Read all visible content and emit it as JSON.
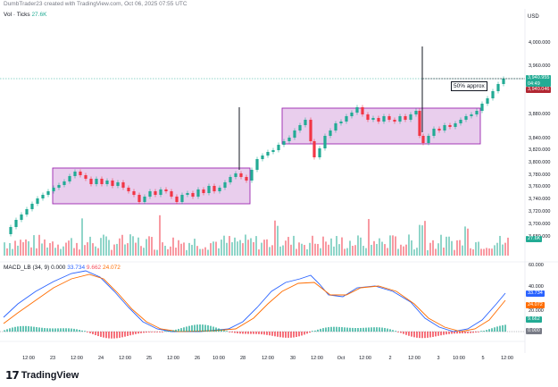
{
  "header": {
    "text": "DumbTrader23 created with TradingView.com, Oct 06, 2025 07:55 UTC"
  },
  "currency": "USD",
  "volume_legend": {
    "name": "Vol · Ticks",
    "value": "27.6K"
  },
  "macd_legend": {
    "name": "MACD_LB (34, 9)",
    "v1": "0.000",
    "v2": "33.734",
    "v3": "9.662",
    "v4": "24.072"
  },
  "annotation": "50% approx",
  "price_axis": {
    "labels": [
      "4,000.000",
      "3,960.000",
      "3,880.000",
      "3,840.000",
      "3,820.000",
      "3,800.000",
      "3,780.000",
      "3,760.000",
      "3,740.000",
      "3,720.000",
      "3,700.000",
      "3,680.000",
      "3,660.000"
    ],
    "current_price": "3,940.955",
    "countdown": "04:49",
    "high_price": "3,940.046",
    "volume_badge": "27.6K"
  },
  "macd_axis": {
    "labels": [
      "60.000",
      "40.000",
      "20.000"
    ],
    "macd": "33.734",
    "signal": "24.072",
    "hist": "9.662",
    "zero": "0.000"
  },
  "time_axis": [
    "12:00",
    "23",
    "12:00",
    "24",
    "12:00",
    "25",
    "12:00",
    "26",
    "10:00",
    "28",
    "12:00",
    "30",
    "12:00",
    "Oct",
    "12:00",
    "2",
    "12:00",
    "3",
    "10:00",
    "5",
    "12:00"
  ],
  "logo": {
    "mark": "17",
    "name": "TradingView"
  },
  "colors": {
    "up": "#22ab94",
    "down": "#f23645",
    "box_fill": "#e1bee7",
    "box_stroke": "#9c27b0",
    "macd_line": "#2962ff",
    "signal_line": "#ff6d00",
    "price_line": "#22ab94"
  }
}
